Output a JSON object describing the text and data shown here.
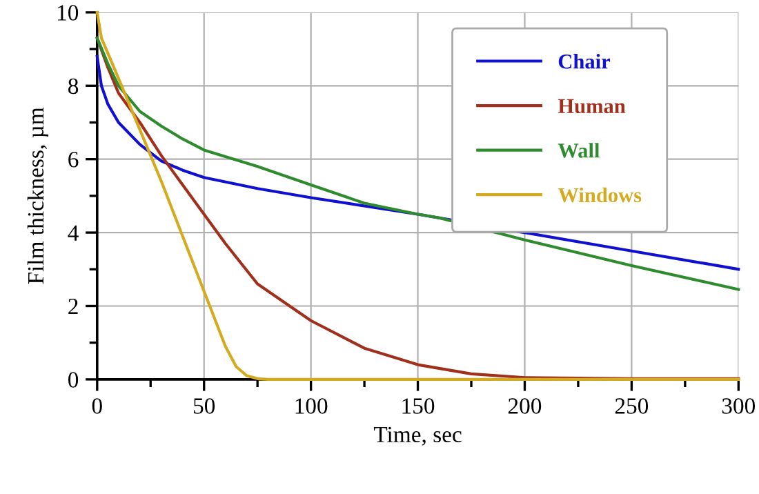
{
  "chart_data": {
    "type": "line",
    "xlabel": "Time, sec",
    "ylabel": "Film thickness, µm",
    "xlim": [
      0,
      300
    ],
    "ylim": [
      0,
      10
    ],
    "xticks": [
      0,
      {
        "value": 25,
        "label": null
      },
      50,
      {
        "value": 75,
        "label": null
      },
      100,
      {
        "value": 125,
        "label": null
      },
      150,
      {
        "value": 175,
        "label": null
      },
      200,
      {
        "value": 225,
        "label": null
      },
      250,
      {
        "value": 275,
        "label": null
      },
      300
    ],
    "yticks": [
      0,
      {
        "value": 1,
        "label": null
      },
      2,
      {
        "value": 3,
        "label": null
      },
      4,
      {
        "value": 5,
        "label": null
      },
      6,
      {
        "value": 7,
        "label": null
      },
      8,
      {
        "value": 9,
        "label": null
      },
      10
    ],
    "grid": true,
    "legend": "top right",
    "marker": "none",
    "line_style": "solid",
    "series": [
      {
        "name": "Chair",
        "color": "#1010d0",
        "x": [
          0,
          2,
          5,
          10,
          20,
          30,
          40,
          50,
          75,
          100,
          150,
          200,
          250,
          300
        ],
        "values": [
          8.8,
          8.0,
          7.5,
          7.0,
          6.4,
          5.95,
          5.7,
          5.5,
          5.2,
          4.95,
          4.5,
          4.0,
          3.5,
          3.0
        ]
      },
      {
        "name": "Human",
        "color": "#a0301c",
        "x": [
          0,
          5,
          10,
          20,
          30,
          40,
          50,
          60,
          75,
          100,
          125,
          150,
          175,
          200,
          250,
          300
        ],
        "values": [
          9.3,
          8.5,
          7.8,
          7.0,
          6.1,
          5.3,
          4.5,
          3.7,
          2.6,
          1.6,
          0.85,
          0.4,
          0.15,
          0.05,
          0.02,
          0.02
        ]
      },
      {
        "name": "Wall",
        "color": "#2e8b2e",
        "x": [
          0,
          5,
          10,
          20,
          30,
          40,
          50,
          75,
          100,
          125,
          150,
          160,
          200,
          250,
          300
        ],
        "values": [
          9.3,
          8.6,
          8.0,
          7.3,
          6.9,
          6.55,
          6.25,
          5.8,
          5.3,
          4.8,
          4.5,
          4.4,
          3.8,
          3.1,
          2.45
        ]
      },
      {
        "name": "Windows",
        "color": "#d4aa20",
        "x": [
          0,
          2,
          10,
          20,
          30,
          40,
          50,
          60,
          65,
          70,
          75,
          80,
          300
        ],
        "values": [
          10,
          9.3,
          8.2,
          6.8,
          5.4,
          3.9,
          2.4,
          0.9,
          0.35,
          0.1,
          0.02,
          0,
          0
        ]
      }
    ]
  }
}
